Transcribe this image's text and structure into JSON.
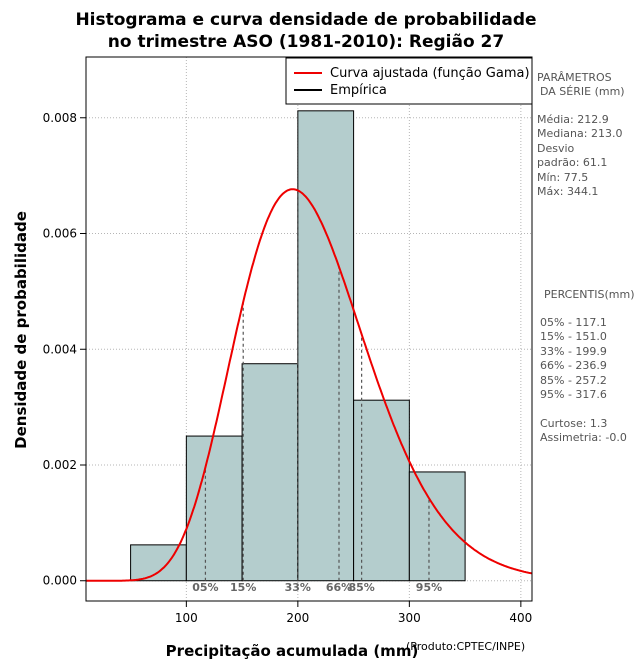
{
  "chart_data": {
    "type": "bar",
    "title": [
      "Histograma e curva densidade de probabilidade",
      "no trimestre ASO (1981-2010): Região 27"
    ],
    "xlabel": "Precipitação acumulada (mm)",
    "ylabel": "Densidade de probabilidade",
    "credit": "(Produto:CPTEC/INPE)",
    "xlim": [
      10,
      410
    ],
    "ylim": [
      -0.00035,
      0.00905
    ],
    "x_ticks": [
      100,
      200,
      300,
      400
    ],
    "y_ticks": [
      0.0,
      0.002,
      0.004,
      0.006,
      0.008
    ],
    "y_tick_labels": [
      "0.000",
      "0.002",
      "0.004",
      "0.006",
      "0.008"
    ],
    "grid": true,
    "legend_position": "top-right",
    "legend": [
      {
        "label": "Curva ajustada (função Gama)",
        "color": "#ee0000"
      },
      {
        "label": "Empírica",
        "color": "#000000"
      }
    ],
    "bars": [
      {
        "x0": 50,
        "x1": 100,
        "density": 0.00062
      },
      {
        "x0": 100,
        "x1": 150,
        "density": 0.0025
      },
      {
        "x0": 150,
        "x1": 200,
        "density": 0.00375
      },
      {
        "x0": 200,
        "x1": 250,
        "density": 0.00812
      },
      {
        "x0": 250,
        "x1": 300,
        "density": 0.00312
      },
      {
        "x0": 300,
        "x1": 350,
        "density": 0.00188
      }
    ],
    "gamma_fit": {
      "mean": 212.9,
      "sd": 61.1
    },
    "percentile_lines": [
      {
        "label": "05%",
        "value": 117.1
      },
      {
        "label": "15%",
        "value": 151.0
      },
      {
        "label": "33%",
        "value": 199.9
      },
      {
        "label": "66%",
        "value": 236.9
      },
      {
        "label": "85%",
        "value": 257.2
      },
      {
        "label": "95%",
        "value": 317.6
      }
    ],
    "colors": {
      "bar_fill": "#b4cdcd",
      "curve": "#ee0000",
      "percentile_line": "#555555"
    }
  },
  "side_panel": {
    "params_title": [
      "PARÂMETROS",
      "DA SÉRIE (mm)"
    ],
    "params": [
      "Média:  212.9",
      "Mediana:  213.0",
      "Desvio",
      "padrão:  61.1",
      "Mín:  77.5",
      "Máx:  344.1"
    ],
    "percentis_title": "PERCENTIS(mm)",
    "percentis": [
      "05% -  117.1",
      "15% -  151.0",
      "33% -  199.9",
      "66% -  236.9",
      "85% -  257.2",
      "95% -  317.6"
    ],
    "extra": [
      "Curtose:  1.3",
      "Assimetria:  -0.0"
    ]
  }
}
